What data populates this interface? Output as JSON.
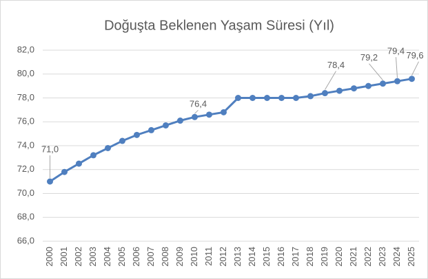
{
  "chart_data": {
    "type": "line",
    "title": "Doğuşta Beklenen Yaşam Süresi (Yıl)",
    "categories": [
      "2000",
      "2001",
      "2002",
      "2003",
      "2004",
      "2005",
      "2006",
      "2007",
      "2008",
      "2009",
      "2010",
      "2011",
      "2012",
      "2013",
      "2014",
      "2015",
      "2016",
      "2017",
      "2018",
      "2019",
      "2020",
      "2021",
      "2022",
      "2023",
      "2024",
      "2025"
    ],
    "values": [
      71.0,
      71.8,
      72.5,
      73.2,
      73.8,
      74.4,
      74.9,
      75.3,
      75.7,
      76.1,
      76.4,
      76.6,
      76.8,
      78.0,
      78.0,
      78.0,
      78.0,
      78.0,
      78.15,
      78.4,
      78.6,
      78.8,
      79.0,
      79.2,
      79.4,
      79.6
    ],
    "value_labels": [
      "71,0",
      null,
      null,
      null,
      null,
      null,
      null,
      null,
      null,
      null,
      "76,4",
      null,
      null,
      null,
      null,
      null,
      null,
      null,
      null,
      "78,4",
      null,
      null,
      null,
      "79,2",
      "79,4",
      "79,6"
    ],
    "color": "#4f7fbf",
    "ylim": [
      66,
      82
    ],
    "yticks": [
      {
        "value": 66,
        "label": "66,0"
      },
      {
        "value": 68,
        "label": "68,0"
      },
      {
        "value": 70,
        "label": "70,0"
      },
      {
        "value": 72,
        "label": "72,0"
      },
      {
        "value": 74,
        "label": "74,0"
      },
      {
        "value": 76,
        "label": "76,0"
      },
      {
        "value": 78,
        "label": "78,0"
      },
      {
        "value": 80,
        "label": "80,0"
      },
      {
        "value": 82,
        "label": "82,0"
      }
    ],
    "grid": true
  }
}
